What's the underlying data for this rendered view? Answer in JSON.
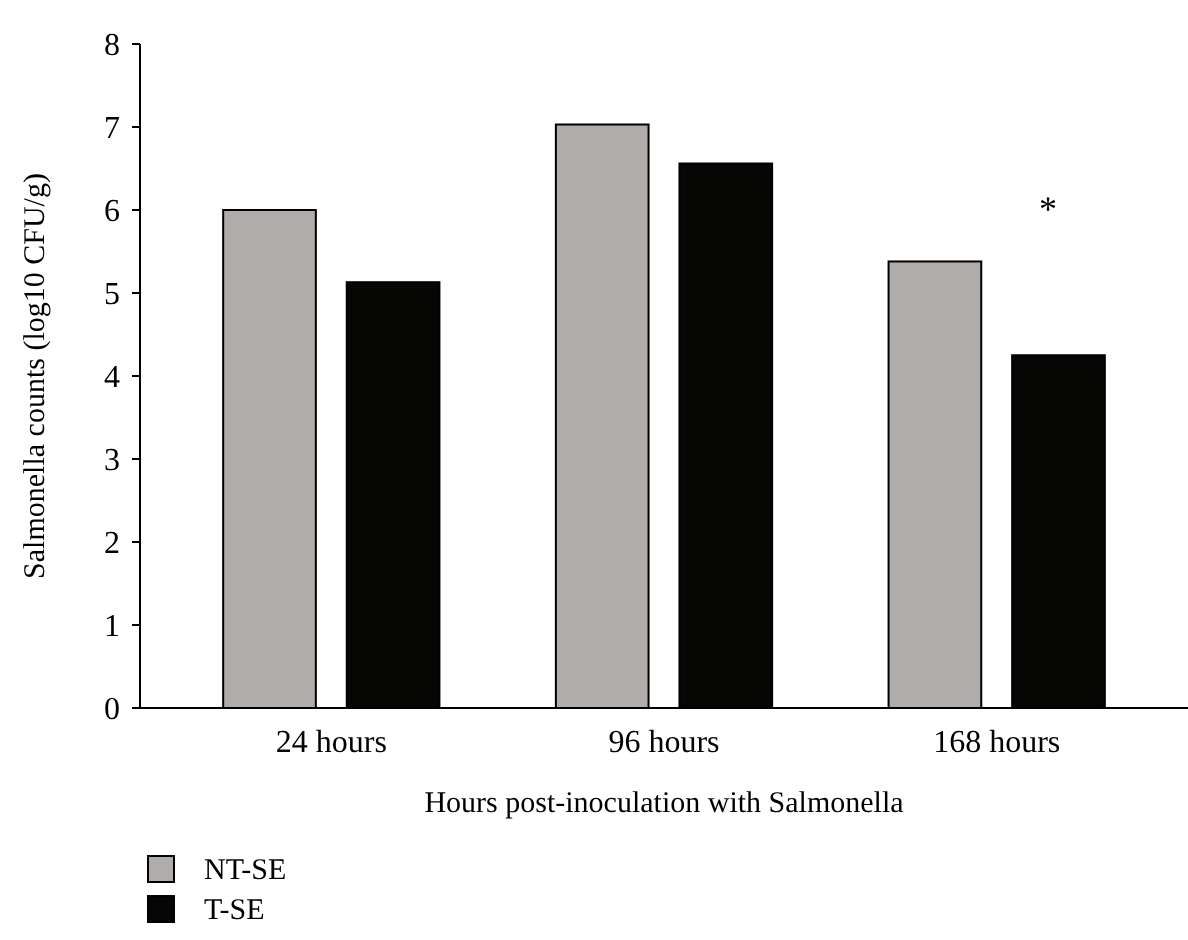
{
  "chart_data": {
    "type": "bar",
    "xlabel": "Hours post-inoculation with Salmonella",
    "ylabel": "Salmonella counts (log10 CFU/g)",
    "categories": [
      "24 hours",
      "96 hours",
      "168 hours"
    ],
    "series": [
      {
        "name": "NT-SE",
        "color": "#b0acaa",
        "values": [
          6.0,
          7.03,
          5.38
        ]
      },
      {
        "name": "T-SE",
        "color": "#060604",
        "values": [
          5.13,
          6.56,
          4.25
        ]
      }
    ],
    "ylim": [
      0,
      8
    ],
    "yticks": [
      0,
      1,
      2,
      3,
      4,
      5,
      6,
      7,
      8
    ],
    "legend": "bottom",
    "grid": false,
    "annotations": [
      "*"
    ]
  }
}
